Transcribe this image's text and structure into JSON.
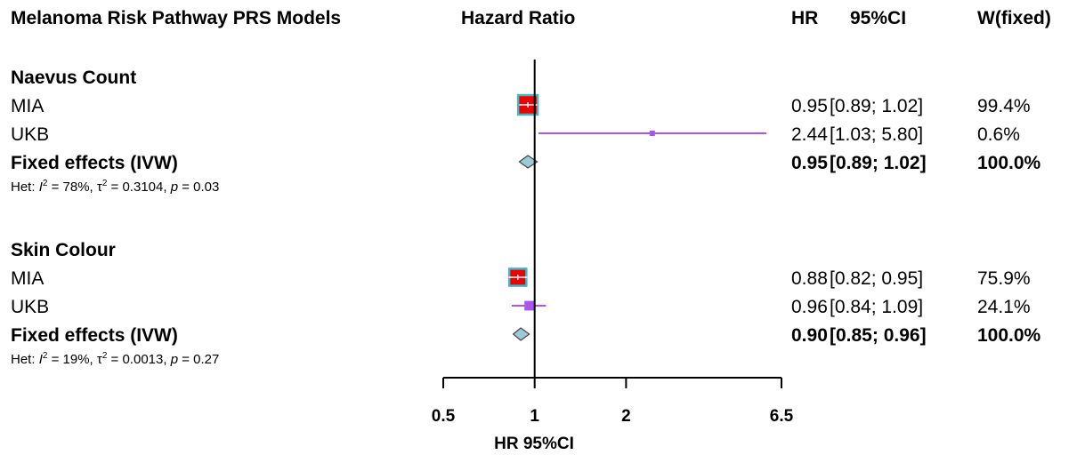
{
  "chart_data": {
    "type": "forest",
    "headers": {
      "study": "Melanoma Risk Pathway PRS Models",
      "plot": "Hazard Ratio",
      "hr": "HR",
      "ci": "95%CI",
      "weight": "W(fixed)"
    },
    "xlabel": "HR 95%CI",
    "x_scale": "log",
    "xlim": [
      0.5,
      6.5
    ],
    "x_ticks": [
      0.5,
      1,
      2,
      6.5
    ],
    "x_tick_labels": [
      "0.5",
      "1",
      "2",
      "6.5"
    ],
    "reference_line": 1,
    "colors": {
      "mia_box": "#ee0000",
      "mia_border": "#3fb8c4",
      "ukb_line": "#aa55ee",
      "ukb_box": "#aa55ee",
      "diamond": "#9fc9d6"
    },
    "groups": [
      {
        "name": "Naevus Count",
        "studies": [
          {
            "label": "MIA",
            "hr": 0.95,
            "lower": 0.89,
            "upper": 1.02,
            "hr_text": "0.95",
            "ci_text": "[0.89; 1.02]",
            "weight_text": "99.4%",
            "weight": 99.4,
            "color": "#ee0000"
          },
          {
            "label": "UKB",
            "hr": 2.44,
            "lower": 1.03,
            "upper": 5.8,
            "hr_text": "2.44",
            "ci_text": "[1.03; 5.80]",
            "weight_text": "0.6%",
            "weight": 0.6,
            "color": "#aa55ee"
          }
        ],
        "pooled": {
          "label": "Fixed effects (IVW)",
          "hr": 0.95,
          "lower": 0.89,
          "upper": 1.02,
          "hr_text": "0.95",
          "ci_text": "[0.89; 1.02]",
          "weight_text": "100.0%"
        },
        "het": {
          "prefix": "Het: ",
          "i2_sym": "I",
          "i2_exp": "2",
          "i2_val": " = 78%, ",
          "tau_sym": "τ",
          "tau_exp": "2",
          "tau_val": " = 0.3104, ",
          "p_sym": "p",
          "p_val": " = 0.03"
        }
      },
      {
        "name": "Skin Colour",
        "studies": [
          {
            "label": "MIA",
            "hr": 0.88,
            "lower": 0.82,
            "upper": 0.95,
            "hr_text": "0.88",
            "ci_text": "[0.82; 0.95]",
            "weight_text": "75.9%",
            "weight": 75.9,
            "color": "#ee0000"
          },
          {
            "label": "UKB",
            "hr": 0.96,
            "lower": 0.84,
            "upper": 1.09,
            "hr_text": "0.96",
            "ci_text": "[0.84; 1.09]",
            "weight_text": "24.1%",
            "weight": 24.1,
            "color": "#aa55ee"
          }
        ],
        "pooled": {
          "label": "Fixed effects (IVW)",
          "hr": 0.9,
          "lower": 0.85,
          "upper": 0.96,
          "hr_text": "0.90",
          "ci_text": "[0.85; 0.96]",
          "weight_text": "100.0%"
        },
        "het": {
          "prefix": "Het: ",
          "i2_sym": "I",
          "i2_exp": "2",
          "i2_val": " = 19%, ",
          "tau_sym": "τ",
          "tau_exp": "2",
          "tau_val": " = 0.0013, ",
          "p_sym": "p",
          "p_val": " = 0.27"
        }
      }
    ]
  }
}
